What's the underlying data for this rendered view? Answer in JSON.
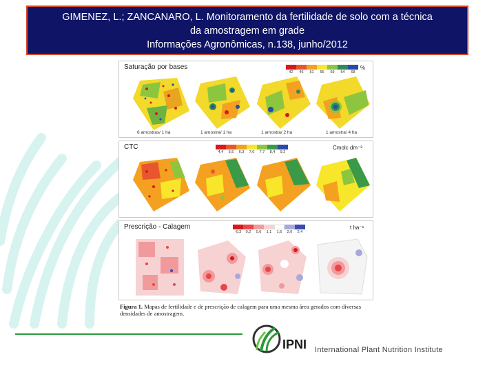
{
  "header": {
    "line1": "GIMENEZ, L.; ZANCANARO, L. Monitoramento da fertilidade de solo com a técnica",
    "line2": "da amostragem em grade",
    "line3": "Informações Agronômicas, n.138, junho/2012"
  },
  "figure": {
    "panels": [
      {
        "title": "Saturação por bases",
        "unit": "%",
        "scale": [
          "42",
          "46",
          "51",
          "55",
          "59",
          "64",
          "68"
        ],
        "scale_colors": [
          "#d7191c",
          "#e8562d",
          "#f4a020",
          "#f7e62a",
          "#8cc63f",
          "#2e8b57",
          "#2b4aa8"
        ],
        "captions": [
          "6 amostras/ 1 ha",
          "1 amostra/ 1 ha",
          "1 amostra/ 2 ha",
          "1 amostra/ 4 ha"
        ]
      },
      {
        "title": "CTC",
        "unit": "Cmolc dm⁻³",
        "scale": [
          "4,4",
          "5,5",
          "6,3",
          "7,0",
          "7,7",
          "8,4",
          "9,2"
        ],
        "scale_colors": [
          "#d7191c",
          "#e8562d",
          "#f4a020",
          "#f7e62a",
          "#8cc63f",
          "#3a9a48",
          "#2b4aa8"
        ]
      },
      {
        "title": "Prescrição - Calagem",
        "unit": "t ha⁻¹",
        "scale": [
          "-0,3",
          "0,2",
          "0,6",
          "1,1",
          "1,6",
          "2,0",
          "2,4"
        ],
        "scale_colors": [
          "#d7191c",
          "#e8474a",
          "#f19a9c",
          "#f7d2d2",
          "#ffffff",
          "#a9a9d9",
          "#3a4ab0"
        ]
      }
    ],
    "caption_label": "Figura 1.",
    "caption_text": "Mapas de fertilidade e de prescrição de calagem para uma mesma área gerados com diversas densidades de amostragem."
  },
  "footer": {
    "logo_text": "IPNI",
    "org_name": "International Plant Nutrition Institute"
  },
  "colors": {
    "banner_bg": "#0f1466",
    "banner_border": "#d9482b",
    "footer_line": "#2a9a3a"
  }
}
